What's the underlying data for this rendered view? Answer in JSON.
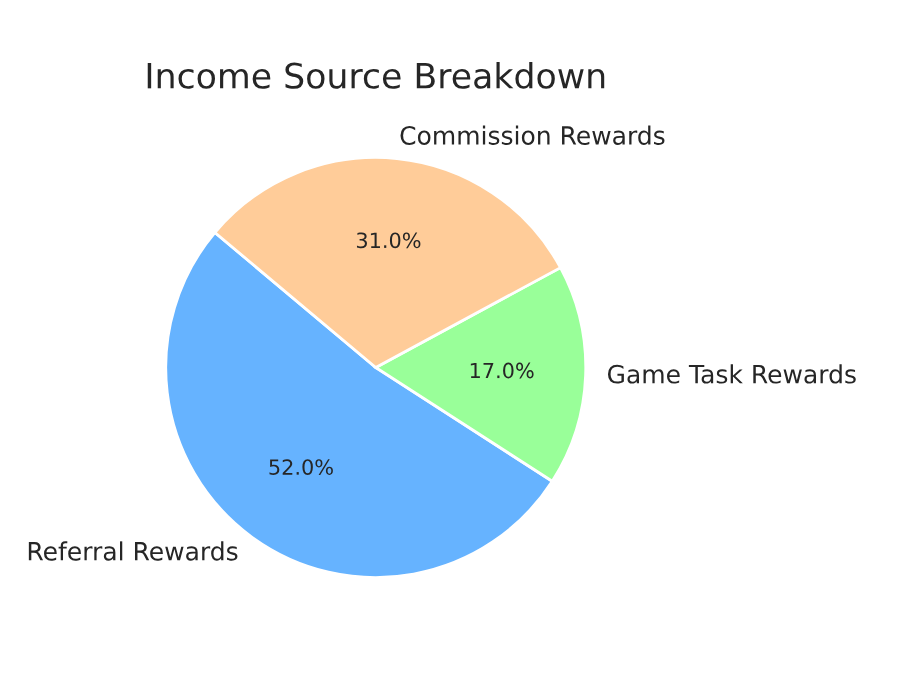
{
  "chart_data": {
    "type": "pie",
    "title": "Income Source Breakdown",
    "categories": [
      "Referral Rewards",
      "Game Task Rewards",
      "Commission Rewards"
    ],
    "values": [
      52.0,
      17.0,
      31.0
    ],
    "colors": [
      "#66b3ff",
      "#99ff99",
      "#ffcc99"
    ],
    "value_labels": [
      "52.0%",
      "17.0%",
      "31.0%"
    ]
  }
}
